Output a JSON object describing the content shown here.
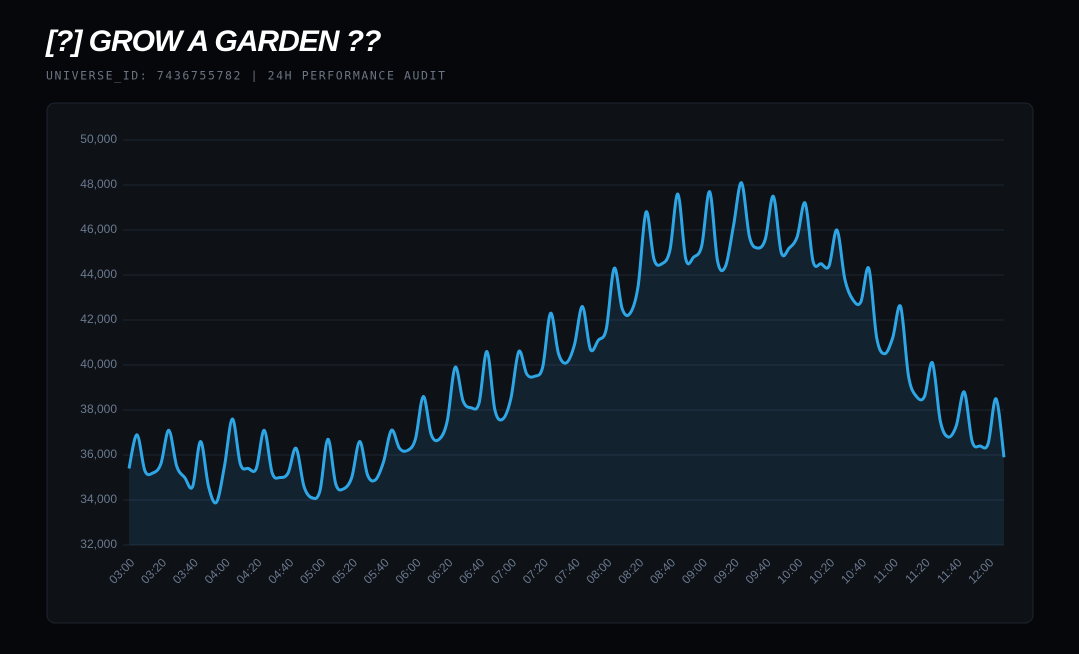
{
  "title": "[?] GROW A GARDEN ??",
  "subtitle": "UNIVERSE_ID: 7436755782 | 24H PERFORMANCE AUDIT",
  "chart_data": {
    "type": "line",
    "categories": [
      "03:00",
      null,
      null,
      null,
      "03:20",
      null,
      null,
      null,
      "03:40",
      null,
      null,
      null,
      "04:00",
      null,
      null,
      null,
      "04:20",
      null,
      null,
      null,
      "04:40",
      null,
      null,
      null,
      "05:00",
      null,
      null,
      null,
      "05:20",
      null,
      null,
      null,
      "05:40",
      null,
      null,
      null,
      "06:00",
      null,
      null,
      null,
      "06:20",
      null,
      null,
      null,
      "06:40",
      null,
      null,
      null,
      "07:00",
      null,
      null,
      null,
      "07:20",
      null,
      null,
      null,
      "07:40",
      null,
      null,
      null,
      "08:00",
      null,
      null,
      null,
      "08:20",
      null,
      null,
      null,
      "08:40",
      null,
      null,
      null,
      "09:00",
      null,
      null,
      null,
      "09:20",
      null,
      null,
      null,
      "09:40",
      null,
      null,
      null,
      "10:00",
      null,
      null,
      null,
      "10:20",
      null,
      null,
      null,
      "10:40",
      null,
      null,
      null,
      "11:00",
      null,
      null,
      null,
      "11:20",
      null,
      null,
      null,
      "11:40",
      null,
      null,
      null,
      "12:00",
      null,
      null
    ],
    "series": [
      {
        "color": "#2ea6e6",
        "values": [
          35400,
          36900,
          35300,
          35200,
          35600,
          37100,
          35500,
          35000,
          34600,
          36600,
          34600,
          33900,
          35500,
          37600,
          35600,
          35400,
          35400,
          37100,
          35200,
          35000,
          35200,
          36300,
          34600,
          34100,
          34400,
          36700,
          34700,
          34500,
          35000,
          36600,
          35100,
          34900,
          35700,
          37100,
          36300,
          36200,
          36700,
          38600,
          36900,
          36700,
          37500,
          39900,
          38400,
          38100,
          38300,
          40600,
          38000,
          37600,
          38500,
          40600,
          39600,
          39500,
          39900,
          42300,
          40500,
          40100,
          40900,
          42600,
          40700,
          41100,
          41600,
          44300,
          42500,
          42300,
          43500,
          46800,
          44700,
          44500,
          45100,
          47600,
          44700,
          44800,
          45300,
          47700,
          44600,
          44400,
          46200,
          48100,
          45700,
          45200,
          45600,
          47500,
          45000,
          45200,
          45700,
          47200,
          44600,
          44500,
          44400,
          46000,
          43800,
          42900,
          42800,
          44300,
          41200,
          40500,
          41200,
          42600,
          39500,
          38600,
          38600,
          40100,
          37500,
          36800,
          37300,
          38800,
          36600,
          36400,
          36500,
          38500,
          35900
        ]
      }
    ],
    "ylim": [
      32000,
      50000
    ],
    "yticks": [
      {
        "value": 32000,
        "label": "32,000"
      },
      {
        "value": 34000,
        "label": "34,000"
      },
      {
        "value": 36000,
        "label": "36,000"
      },
      {
        "value": 38000,
        "label": "38,000"
      },
      {
        "value": 40000,
        "label": "40,000"
      },
      {
        "value": 42000,
        "label": "42,000"
      },
      {
        "value": 44000,
        "label": "44,000"
      },
      {
        "value": 46000,
        "label": "46,000"
      },
      {
        "value": 48000,
        "label": "48,000"
      },
      {
        "value": 50000,
        "label": "50,000"
      }
    ],
    "grid": true,
    "area": true
  }
}
